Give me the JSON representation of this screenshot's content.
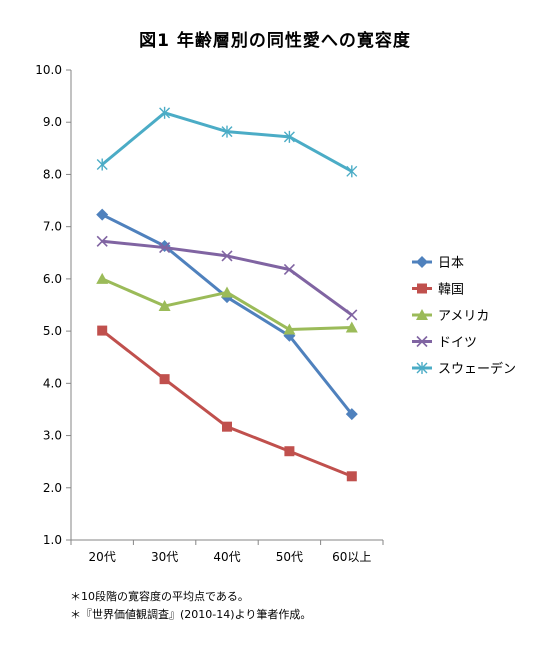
{
  "chart_data": {
    "type": "line",
    "title": "図1 年齢層別の同性愛への寛容度",
    "categories": [
      "20代",
      "30代",
      "40代",
      "50代",
      "60以上"
    ],
    "ylim": [
      1.0,
      10.0
    ],
    "yticks": [
      "1.0",
      "2.0",
      "3.0",
      "4.0",
      "5.0",
      "6.0",
      "7.0",
      "8.0",
      "9.0",
      "10.0"
    ],
    "grid": false,
    "legend_position": "right",
    "series": [
      {
        "name": "日本",
        "color": "#4f81bd",
        "marker": "diamond",
        "values": [
          7.23,
          6.63,
          5.65,
          4.91,
          3.41
        ]
      },
      {
        "name": "韓国",
        "color": "#c0504d",
        "marker": "square",
        "values": [
          5.01,
          4.08,
          3.17,
          2.7,
          2.22
        ]
      },
      {
        "name": "アメリカ",
        "color": "#9bbb59",
        "marker": "triangle",
        "values": [
          6.0,
          5.48,
          5.74,
          5.03,
          5.07
        ]
      },
      {
        "name": "ドイツ",
        "color": "#8064a2",
        "marker": "x",
        "values": [
          6.72,
          6.6,
          6.44,
          6.18,
          5.31
        ]
      },
      {
        "name": "スウェーデン",
        "color": "#4bacc6",
        "marker": "asterisk",
        "values": [
          8.19,
          9.18,
          8.82,
          8.72,
          8.06
        ]
      }
    ]
  },
  "notes": [
    "＊10段階の寛容度の平均点である。",
    "＊『世界価値観調査』(2010-14)より筆者作成。"
  ]
}
